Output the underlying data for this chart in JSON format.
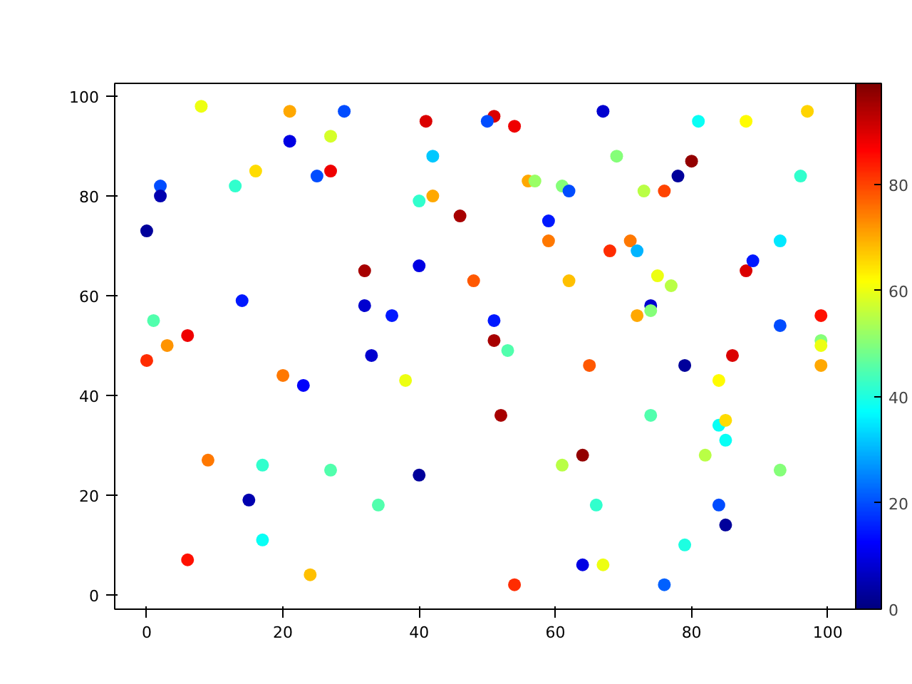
{
  "chart_data": {
    "type": "scatter",
    "marker": "circle",
    "grid": false,
    "x": [
      8,
      21,
      29,
      41,
      51,
      50,
      54,
      67,
      81,
      88,
      97,
      21,
      27,
      42,
      69,
      16,
      13,
      25,
      27,
      2,
      2,
      40,
      42,
      0,
      46,
      56,
      57,
      61,
      62,
      73,
      76,
      78,
      80,
      96,
      59,
      59,
      71,
      68,
      72,
      32,
      48,
      62,
      75,
      77,
      88,
      89,
      93,
      40,
      32,
      36,
      14,
      74,
      74,
      72,
      51,
      51,
      53,
      93,
      99,
      99,
      99,
      99,
      1,
      3,
      6,
      0,
      20,
      23,
      33,
      38,
      65,
      79,
      86,
      84,
      52,
      74,
      84,
      85,
      85,
      64,
      61,
      82,
      93,
      66,
      84,
      85,
      79,
      64,
      67,
      54,
      76,
      9,
      17,
      27,
      40,
      15,
      34,
      17,
      6,
      24
    ],
    "values": [
      98,
      97,
      97,
      95,
      96,
      95,
      94,
      97,
      95,
      95,
      97,
      91,
      92,
      88,
      88,
      85,
      82,
      84,
      85,
      82,
      80,
      79,
      80,
      73,
      76,
      83,
      83,
      82,
      81,
      81,
      81,
      84,
      87,
      84,
      75,
      71,
      71,
      69,
      69,
      65,
      63,
      63,
      64,
      62,
      65,
      67,
      71,
      66,
      58,
      56,
      59,
      58,
      57,
      56,
      55,
      51,
      49,
      54,
      56,
      51,
      50,
      46,
      55,
      50,
      52,
      47,
      44,
      42,
      48,
      43,
      46,
      46,
      48,
      43,
      36,
      36,
      34,
      35,
      31,
      28,
      26,
      28,
      25,
      18,
      18,
      14,
      10,
      6,
      6,
      2,
      2,
      27,
      26,
      25,
      24,
      19,
      18,
      11,
      7,
      4
    ],
    "cvalues": [
      60,
      70,
      20,
      90,
      90,
      20,
      88,
      8,
      38,
      62,
      66,
      10,
      58,
      32,
      50,
      65,
      42,
      20,
      88,
      20,
      5,
      42,
      70,
      3,
      95,
      70,
      52,
      50,
      20,
      55,
      80,
      3,
      97,
      42,
      15,
      75,
      75,
      82,
      30,
      95,
      78,
      68,
      60,
      55,
      90,
      15,
      35,
      10,
      8,
      15,
      15,
      8,
      50,
      70,
      15,
      95,
      45,
      20,
      85,
      50,
      60,
      70,
      45,
      72,
      88,
      82,
      75,
      12,
      8,
      60,
      78,
      3,
      90,
      62,
      95,
      45,
      38,
      65,
      38,
      97,
      55,
      55,
      50,
      42,
      20,
      3,
      40,
      10,
      60,
      82,
      22,
      75,
      42,
      45,
      3,
      5,
      45,
      38,
      85,
      68
    ],
    "xlim": [
      -4.7,
      104.1
    ],
    "ylim": [
      -2.9,
      102.6
    ],
    "xticks": [
      0,
      20,
      40,
      60,
      80,
      100
    ],
    "yticks": [
      0,
      20,
      40,
      60,
      80,
      100
    ],
    "clim": [
      0,
      99
    ],
    "cticks": [
      0,
      20,
      40,
      60,
      80
    ]
  }
}
